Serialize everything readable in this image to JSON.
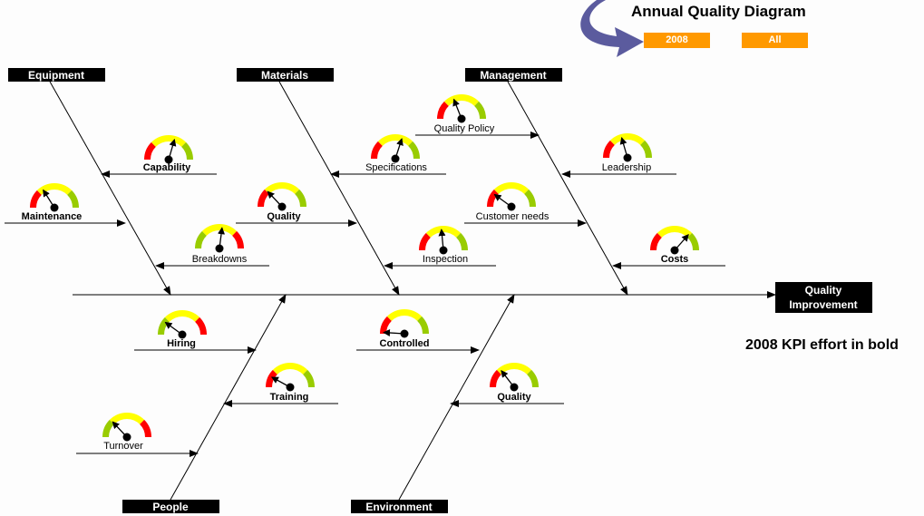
{
  "header": {
    "title": "Annual Quality Diagram",
    "filter_buttons": [
      "2008",
      "All"
    ],
    "accent_color": "#ff9900",
    "arrow_color": "#5b5b9e"
  },
  "effect": "Quality Improvement",
  "effect_lines": [
    "Quality",
    "Improvement"
  ],
  "note": "2008 KPI effort in bold",
  "categories": [
    {
      "name": "Equipment",
      "causes": [
        {
          "label": "Capability",
          "bold": true,
          "reversed": false,
          "level": 0.59
        },
        {
          "label": "Maintenance",
          "bold": true,
          "reversed": false,
          "level": 0.32
        },
        {
          "label": "Breakdowns",
          "bold": false,
          "reversed": true,
          "level": 0.54
        }
      ]
    },
    {
      "name": "Materials",
      "causes": [
        {
          "label": "Specifications",
          "bold": false,
          "reversed": false,
          "level": 0.6
        },
        {
          "label": "Quality",
          "bold": true,
          "reversed": false,
          "level": 0.26
        },
        {
          "label": "Inspection",
          "bold": false,
          "reversed": false,
          "level": 0.47
        }
      ]
    },
    {
      "name": "Management",
      "causes": [
        {
          "label": "Quality Policy",
          "bold": false,
          "reversed": false,
          "level": 0.38
        },
        {
          "label": "Leadership",
          "bold": false,
          "reversed": false,
          "level": 0.41
        },
        {
          "label": "Customer needs",
          "bold": false,
          "reversed": false,
          "level": 0.2
        },
        {
          "label": "Costs",
          "bold": true,
          "reversed": false,
          "level": 0.73
        }
      ]
    },
    {
      "name": "People",
      "causes": [
        {
          "label": "Hiring",
          "bold": true,
          "reversed": true,
          "level": 0.2
        },
        {
          "label": "Training",
          "bold": true,
          "reversed": false,
          "level": 0.16
        },
        {
          "label": "Turnover",
          "bold": false,
          "reversed": true,
          "level": 0.26
        }
      ]
    },
    {
      "name": "Environment",
      "causes": [
        {
          "label": "Controlled",
          "bold": true,
          "reversed": false,
          "level": 0.02
        },
        {
          "label": "Quality",
          "bold": true,
          "reversed": false,
          "level": 0.29
        }
      ]
    }
  ],
  "gauge_colors": {
    "low": "#ff0000",
    "mid": "#ffff00",
    "high": "#99cc00"
  }
}
